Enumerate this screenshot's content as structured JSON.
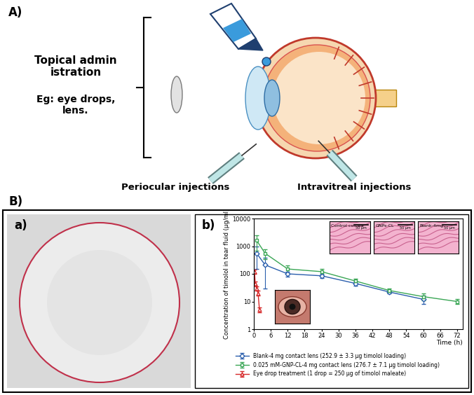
{
  "panel_labels": {
    "A": "A)",
    "B": "B)",
    "a": "a)",
    "b": "b)"
  },
  "diagram": {
    "topical": "Topical administration",
    "topical_example": "Eg: eye drops, lens.",
    "periocular": "Periocular injections",
    "intravitreal": "Intravitreal injections"
  },
  "histology_insets": [
    {
      "label": "Control cornea",
      "scale_bar": "50 µm"
    },
    {
      "label": "GNPs-CL",
      "scale_bar": "50 µm"
    },
    {
      "label": "Blank-4mg",
      "scale_bar": "50 µm"
    }
  ],
  "chart_data": {
    "type": "line",
    "x_label": "Time (h)",
    "y_label": "Concentration of timolol in tear fluid (µg/ml)",
    "log": "y",
    "xlim": [
      0,
      74
    ],
    "xticks": [
      0,
      6,
      12,
      18,
      24,
      30,
      36,
      42,
      48,
      54,
      60,
      66,
      72
    ],
    "ylim": [
      1,
      10000
    ],
    "yticks": [
      1,
      10,
      100,
      1000,
      10000
    ],
    "legend": "upper center",
    "series": [
      {
        "name": "Blank-4 mg contact lens (252.9 ± 3.3 μg timolol loading)",
        "color": "#2b5fad",
        "marker": "diamond",
        "x": [
          1,
          4,
          12,
          24,
          36,
          48,
          60
        ],
        "values": [
          550,
          210,
          100,
          85,
          45,
          22,
          12
        ],
        "errors": [
          400,
          180,
          20,
          15,
          8,
          3,
          4
        ]
      },
      {
        "name": "0.025 mM-GNP-CL-4 mg contact lens (276.7 ± 7.1 μg timolol loading)",
        "color": "#3aa655",
        "marker": "square",
        "x": [
          1,
          4,
          12,
          24,
          36,
          48,
          60,
          72
        ],
        "values": [
          1600,
          550,
          150,
          120,
          55,
          25,
          15,
          10
        ],
        "errors": [
          900,
          200,
          50,
          30,
          10,
          4,
          4,
          2
        ]
      },
      {
        "name": "Eye drop treatment (1 drop = 250 μg of timolol maleate)",
        "color": "#d62728",
        "marker": "triangle",
        "x": [
          0.25,
          0.5,
          1,
          1.5,
          2
        ],
        "values": [
          120,
          45,
          30,
          20,
          5
        ],
        "errors": [
          20,
          8,
          5,
          4,
          1
        ]
      }
    ]
  }
}
